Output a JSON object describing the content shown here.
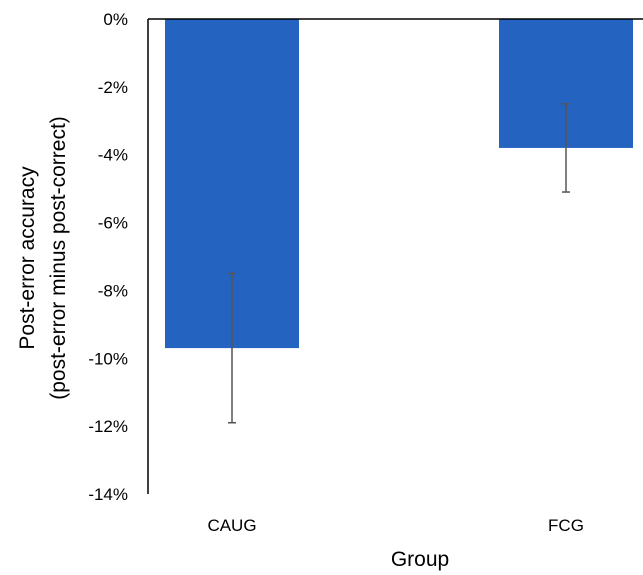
{
  "chart_data": {
    "type": "bar",
    "title": "",
    "xlabel": "Group",
    "ylabel_lines": [
      "Post-error accuracy",
      "(post-error minus post-correct)"
    ],
    "categories": [
      "CAUG",
      "FCG"
    ],
    "values": [
      -9.7,
      -3.8
    ],
    "error_bars": [
      {
        "low": -11.9,
        "high": -7.5
      },
      {
        "low": -5.1,
        "high": -2.5
      }
    ],
    "ylim": [
      -14,
      0
    ],
    "y_ticks": [
      0,
      -2,
      -4,
      -6,
      -8,
      -10,
      -12,
      -14
    ],
    "y_tick_labels": [
      "0%",
      "-2%",
      "-4%",
      "-6%",
      "-8%",
      "-10%",
      "-12%",
      "-14%"
    ],
    "y_unit": "%",
    "bar_color": "#2563c0",
    "errorbar_color": "#555555",
    "axis_color": "#000000",
    "grid": false,
    "legend": "none"
  }
}
